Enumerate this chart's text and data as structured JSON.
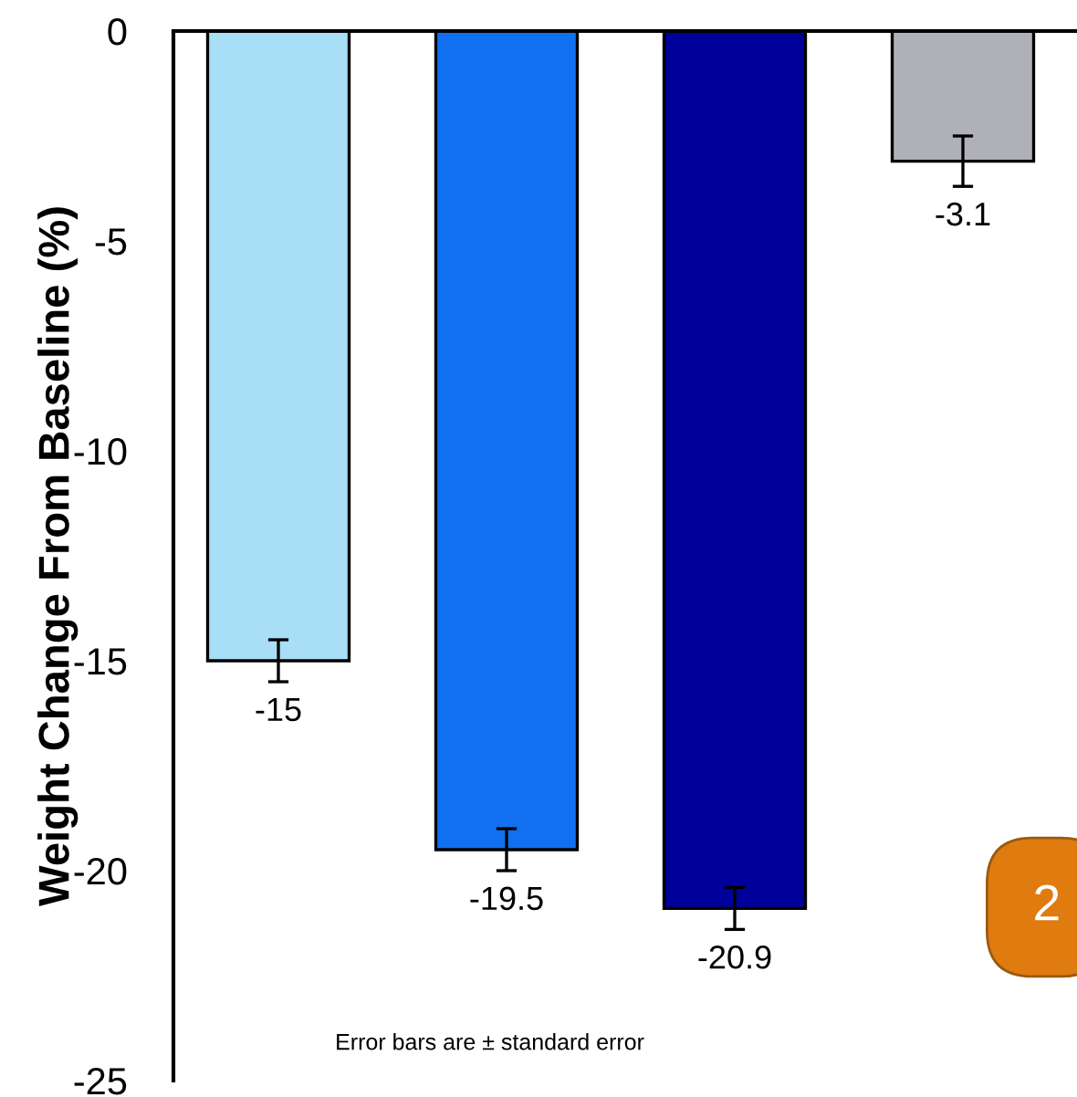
{
  "chart_data": {
    "type": "bar",
    "ylabel": "Weight Change From Baseline (%)",
    "categories": [
      null,
      null,
      null,
      null
    ],
    "values": [
      -15,
      -19.5,
      -20.9,
      -3.1
    ],
    "colors": [
      "#a9def7",
      "#1070f0",
      "#00009a",
      "#b0b0b8"
    ],
    "errors": [
      0.5,
      0.5,
      0.5,
      0.6
    ],
    "data_labels": true,
    "ylim": [
      -25,
      0
    ],
    "yticks": [
      0,
      -5,
      -10,
      -15,
      -20,
      -25
    ],
    "grid": false,
    "legend": false,
    "annotations": [
      "Error bars are ± standard error",
      "2"
    ]
  }
}
